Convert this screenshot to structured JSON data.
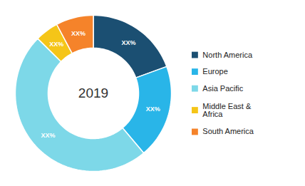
{
  "chart_data": {
    "type": "donut",
    "categories": [
      "North America",
      "Europe",
      "Asia Pacific",
      "Middle East &\nAfrica",
      "South America"
    ],
    "values": [
      20,
      20,
      50,
      5,
      8
    ],
    "colors": [
      "#1b4f72",
      "#29b5e8",
      "#7dd8e8",
      "#f5c518",
      "#f5832a"
    ],
    "data_labels": true,
    "value_labels": [
      "XX%",
      "XX%",
      "XX%",
      "XX%",
      "XX%"
    ],
    "annotations": [
      "2019"
    ],
    "legend": "right"
  }
}
